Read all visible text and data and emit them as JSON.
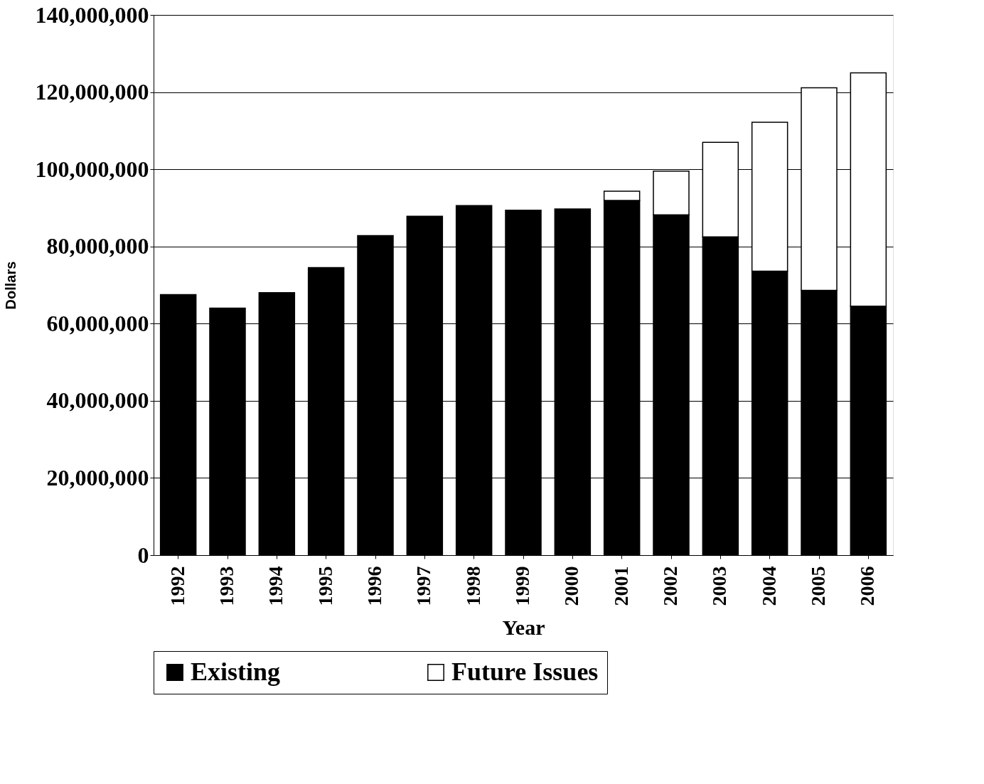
{
  "chart_data": {
    "type": "bar",
    "stacked": true,
    "xlabel": "Year",
    "ylabel": "Dollars",
    "categories": [
      "1992",
      "1993",
      "1994",
      "1995",
      "1996",
      "1997",
      "1998",
      "1999",
      "2000",
      "2001",
      "2002",
      "2003",
      "2004",
      "2005",
      "2006"
    ],
    "series": [
      {
        "name": "Existing",
        "color": "#000000",
        "values": [
          67500000.0,
          64000000.0,
          68000000.0,
          74500000.0,
          82800000.0,
          87800000.0,
          90600000.0,
          89400000.0,
          89700000.0,
          91900000.0,
          88200000.0,
          82500000.0,
          73600000.0,
          68600000.0,
          64500000.0
        ]
      },
      {
        "name": "Future Issues",
        "color": "#ffffff",
        "values": [
          null,
          null,
          null,
          null,
          null,
          null,
          null,
          null,
          null,
          2400000.0,
          11300000.0,
          24500000.0,
          38600000.0,
          52500000.0,
          60500000.0
        ]
      }
    ],
    "ylim": [
      0,
      140000000
    ],
    "yticks": [
      0,
      {
        "value": 20000000,
        "label": "20,000,000"
      },
      {
        "value": 40000000,
        "label": "40,000,000"
      },
      {
        "value": 60000000,
        "label": "60,000,000"
      },
      {
        "value": 80000000,
        "label": "80,000,000"
      },
      {
        "value": 100000000,
        "label": "100,000,000"
      },
      {
        "value": 120000000,
        "label": "120,000,000"
      },
      {
        "value": 140000000,
        "label": "140,000,000"
      }
    ],
    "grid": "y",
    "legend": "bottom"
  }
}
